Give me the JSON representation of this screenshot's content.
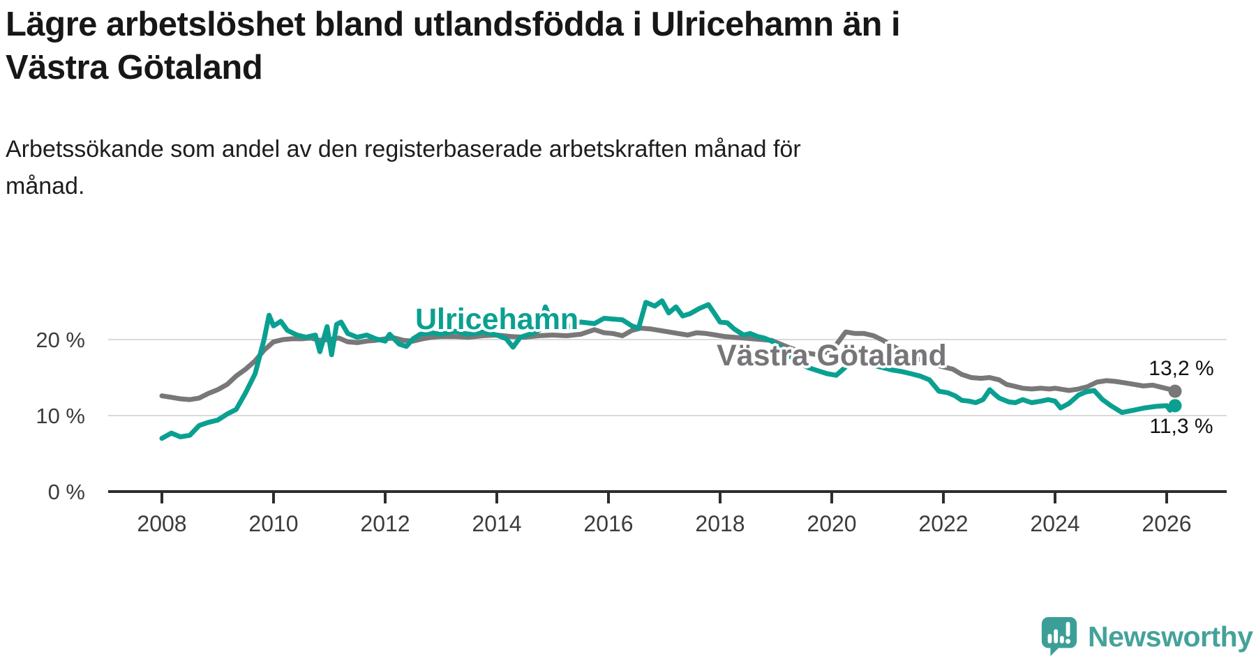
{
  "header": {
    "title_line1": "Lägre arbetslöshet bland utlandsfödda i Ulricehamn än i",
    "title_line2": "Västra Götaland",
    "subtitle_line1": "Arbetssökande som andel av den registerbaserade arbetskraften månad för",
    "subtitle_line2": "månad."
  },
  "footer": {
    "brand": "Newsworthy",
    "brand_color": "#45a29a",
    "icon": "newsworthy-speech-bubble-bar-chart-icon",
    "icon_color": "#3b9f97"
  },
  "chart_data": {
    "type": "line",
    "title": "Lägre arbetslöshet bland utlandsfödda i Ulricehamn än i Västra Götaland",
    "subtitle": "Arbetssökande som andel av den registerbaserade arbetskraften månad för månad.",
    "xlabel": "",
    "ylabel": "",
    "unit": "%",
    "grid": "horizontal",
    "legend_position": "inline-labels",
    "xlim": [
      2007.05,
      2027.1
    ],
    "ylim": [
      0,
      27
    ],
    "x_ticks": [
      {
        "value": 2008,
        "label": "2008"
      },
      {
        "value": 2010,
        "label": "2010"
      },
      {
        "value": 2012,
        "label": "2012"
      },
      {
        "value": 2014,
        "label": "2014"
      },
      {
        "value": 2016,
        "label": "2016"
      },
      {
        "value": 2018,
        "label": "2018"
      },
      {
        "value": 2020,
        "label": "2020"
      },
      {
        "value": 2022,
        "label": "2022"
      },
      {
        "value": 2024,
        "label": "2024"
      },
      {
        "value": 2026,
        "label": "2026"
      }
    ],
    "y_ticks": [
      {
        "value": 0,
        "label": "0 %"
      },
      {
        "value": 10,
        "label": "10 %"
      },
      {
        "value": 20,
        "label": "20 %"
      }
    ],
    "axis_color": "#2d2d2d",
    "tick_label_color": "#3c3c3c",
    "gridline_color": "#dadada",
    "series": [
      {
        "name": "Ulricehamn",
        "color": "#0aa091",
        "end_label": "11,3 %",
        "end_value": 11.3,
        "points": [
          [
            2008.0,
            7.0
          ],
          [
            2008.17,
            7.7
          ],
          [
            2008.33,
            7.2
          ],
          [
            2008.5,
            7.4
          ],
          [
            2008.67,
            8.7
          ],
          [
            2008.83,
            9.1
          ],
          [
            2009.0,
            9.4
          ],
          [
            2009.17,
            10.2
          ],
          [
            2009.33,
            10.8
          ],
          [
            2009.5,
            13.0
          ],
          [
            2009.67,
            15.5
          ],
          [
            2009.83,
            20.0
          ],
          [
            2009.92,
            23.2
          ],
          [
            2010.0,
            21.8
          ],
          [
            2010.13,
            22.4
          ],
          [
            2010.25,
            21.2
          ],
          [
            2010.42,
            20.6
          ],
          [
            2010.58,
            20.3
          ],
          [
            2010.75,
            20.6
          ],
          [
            2010.83,
            18.4
          ],
          [
            2010.96,
            21.7
          ],
          [
            2011.04,
            18.0
          ],
          [
            2011.13,
            22.0
          ],
          [
            2011.21,
            22.3
          ],
          [
            2011.33,
            20.8
          ],
          [
            2011.5,
            20.3
          ],
          [
            2011.67,
            20.6
          ],
          [
            2011.83,
            20.1
          ],
          [
            2012.0,
            19.8
          ],
          [
            2012.08,
            20.7
          ],
          [
            2012.25,
            19.4
          ],
          [
            2012.38,
            19.1
          ],
          [
            2012.5,
            20.1
          ],
          [
            2012.63,
            20.7
          ],
          [
            2012.83,
            20.9
          ],
          [
            2013.0,
            20.7
          ],
          [
            2013.25,
            21.1
          ],
          [
            2013.5,
            20.7
          ],
          [
            2013.75,
            21.0
          ],
          [
            2014.0,
            20.6
          ],
          [
            2014.17,
            20.1
          ],
          [
            2014.29,
            19.0
          ],
          [
            2014.42,
            20.3
          ],
          [
            2014.63,
            20.8
          ],
          [
            2014.75,
            21.2
          ],
          [
            2014.87,
            24.3
          ],
          [
            2015.0,
            21.9
          ],
          [
            2015.25,
            21.6
          ],
          [
            2015.5,
            22.3
          ],
          [
            2015.75,
            22.1
          ],
          [
            2015.92,
            22.8
          ],
          [
            2016.08,
            22.7
          ],
          [
            2016.25,
            22.6
          ],
          [
            2016.42,
            21.8
          ],
          [
            2016.54,
            21.5
          ],
          [
            2016.67,
            24.9
          ],
          [
            2016.83,
            24.4
          ],
          [
            2016.96,
            25.1
          ],
          [
            2017.08,
            23.5
          ],
          [
            2017.21,
            24.3
          ],
          [
            2017.33,
            23.1
          ],
          [
            2017.46,
            23.4
          ],
          [
            2017.63,
            24.1
          ],
          [
            2017.79,
            24.6
          ],
          [
            2017.92,
            23.2
          ],
          [
            2018.0,
            22.3
          ],
          [
            2018.13,
            22.2
          ],
          [
            2018.25,
            21.4
          ],
          [
            2018.42,
            20.6
          ],
          [
            2018.54,
            20.8
          ],
          [
            2018.67,
            20.4
          ],
          [
            2018.79,
            20.2
          ],
          [
            2018.92,
            19.8
          ],
          [
            2019.08,
            19.0
          ],
          [
            2019.25,
            17.8
          ],
          [
            2019.42,
            16.9
          ],
          [
            2019.58,
            16.3
          ],
          [
            2019.75,
            15.9
          ],
          [
            2019.92,
            15.5
          ],
          [
            2020.08,
            15.3
          ],
          [
            2020.25,
            16.4
          ],
          [
            2020.42,
            17.3
          ],
          [
            2020.58,
            17.0
          ],
          [
            2020.75,
            16.6
          ],
          [
            2020.92,
            16.3
          ],
          [
            2021.08,
            16.0
          ],
          [
            2021.25,
            15.8
          ],
          [
            2021.42,
            15.5
          ],
          [
            2021.58,
            15.2
          ],
          [
            2021.75,
            14.7
          ],
          [
            2021.92,
            13.2
          ],
          [
            2022.08,
            13.0
          ],
          [
            2022.21,
            12.6
          ],
          [
            2022.33,
            12.0
          ],
          [
            2022.46,
            11.9
          ],
          [
            2022.58,
            11.7
          ],
          [
            2022.71,
            12.1
          ],
          [
            2022.83,
            13.4
          ],
          [
            2022.92,
            12.8
          ],
          [
            2023.0,
            12.3
          ],
          [
            2023.17,
            11.8
          ],
          [
            2023.29,
            11.7
          ],
          [
            2023.42,
            12.1
          ],
          [
            2023.58,
            11.7
          ],
          [
            2023.75,
            11.9
          ],
          [
            2023.88,
            12.1
          ],
          [
            2024.0,
            11.9
          ],
          [
            2024.1,
            11.0
          ],
          [
            2024.25,
            11.6
          ],
          [
            2024.42,
            12.7
          ],
          [
            2024.55,
            13.1
          ],
          [
            2024.7,
            13.3
          ],
          [
            2024.85,
            12.1
          ],
          [
            2025.0,
            11.3
          ],
          [
            2025.2,
            10.4
          ],
          [
            2025.4,
            10.7
          ],
          [
            2025.6,
            11.0
          ],
          [
            2025.8,
            11.2
          ],
          [
            2026.0,
            11.3
          ],
          [
            2026.06,
            10.7
          ],
          [
            2026.15,
            11.3
          ]
        ]
      },
      {
        "name": "Västra Götaland",
        "color": "#787878",
        "label_color": "#767679",
        "end_label": "13,2 %",
        "end_value": 13.2,
        "points": [
          [
            2008.0,
            12.6
          ],
          [
            2008.17,
            12.4
          ],
          [
            2008.33,
            12.2
          ],
          [
            2008.5,
            12.1
          ],
          [
            2008.67,
            12.3
          ],
          [
            2008.83,
            12.9
          ],
          [
            2009.0,
            13.4
          ],
          [
            2009.17,
            14.1
          ],
          [
            2009.33,
            15.2
          ],
          [
            2009.5,
            16.1
          ],
          [
            2009.67,
            17.2
          ],
          [
            2009.83,
            18.6
          ],
          [
            2010.0,
            19.7
          ],
          [
            2010.17,
            20.0
          ],
          [
            2010.33,
            20.1
          ],
          [
            2010.5,
            20.1
          ],
          [
            2010.67,
            20.2
          ],
          [
            2010.83,
            19.9
          ],
          [
            2011.0,
            20.0
          ],
          [
            2011.17,
            20.2
          ],
          [
            2011.33,
            19.7
          ],
          [
            2011.5,
            19.6
          ],
          [
            2011.67,
            19.8
          ],
          [
            2011.83,
            19.9
          ],
          [
            2012.0,
            20.1
          ],
          [
            2012.17,
            20.2
          ],
          [
            2012.33,
            19.9
          ],
          [
            2012.5,
            19.8
          ],
          [
            2012.67,
            20.1
          ],
          [
            2012.83,
            20.3
          ],
          [
            2013.0,
            20.4
          ],
          [
            2013.25,
            20.4
          ],
          [
            2013.5,
            20.3
          ],
          [
            2013.75,
            20.5
          ],
          [
            2014.0,
            20.6
          ],
          [
            2014.25,
            20.4
          ],
          [
            2014.5,
            20.3
          ],
          [
            2014.75,
            20.5
          ],
          [
            2015.0,
            20.6
          ],
          [
            2015.25,
            20.5
          ],
          [
            2015.5,
            20.7
          ],
          [
            2015.75,
            21.3
          ],
          [
            2015.92,
            20.9
          ],
          [
            2016.08,
            20.8
          ],
          [
            2016.25,
            20.5
          ],
          [
            2016.42,
            21.2
          ],
          [
            2016.58,
            21.5
          ],
          [
            2016.75,
            21.4
          ],
          [
            2016.92,
            21.2
          ],
          [
            2017.08,
            21.0
          ],
          [
            2017.25,
            20.8
          ],
          [
            2017.42,
            20.6
          ],
          [
            2017.58,
            20.9
          ],
          [
            2017.75,
            20.8
          ],
          [
            2017.92,
            20.6
          ],
          [
            2018.08,
            20.4
          ],
          [
            2018.25,
            20.3
          ],
          [
            2018.42,
            20.2
          ],
          [
            2018.58,
            20.1
          ],
          [
            2018.75,
            20.0
          ],
          [
            2018.92,
            19.9
          ],
          [
            2019.08,
            19.4
          ],
          [
            2019.25,
            18.9
          ],
          [
            2019.42,
            18.5
          ],
          [
            2019.58,
            18.2
          ],
          [
            2019.75,
            18.0
          ],
          [
            2019.92,
            18.4
          ],
          [
            2020.08,
            19.3
          ],
          [
            2020.25,
            21.0
          ],
          [
            2020.42,
            20.8
          ],
          [
            2020.58,
            20.8
          ],
          [
            2020.75,
            20.5
          ],
          [
            2020.92,
            19.9
          ],
          [
            2021.08,
            19.2
          ],
          [
            2021.25,
            18.5
          ],
          [
            2021.5,
            17.6
          ],
          [
            2021.75,
            16.9
          ],
          [
            2022.0,
            16.4
          ],
          [
            2022.17,
            16.1
          ],
          [
            2022.33,
            15.4
          ],
          [
            2022.5,
            15.0
          ],
          [
            2022.67,
            14.9
          ],
          [
            2022.83,
            15.0
          ],
          [
            2023.0,
            14.7
          ],
          [
            2023.13,
            14.1
          ],
          [
            2023.25,
            13.9
          ],
          [
            2023.42,
            13.6
          ],
          [
            2023.58,
            13.5
          ],
          [
            2023.75,
            13.6
          ],
          [
            2023.9,
            13.5
          ],
          [
            2024.0,
            13.6
          ],
          [
            2024.25,
            13.3
          ],
          [
            2024.42,
            13.5
          ],
          [
            2024.58,
            13.8
          ],
          [
            2024.75,
            14.4
          ],
          [
            2024.92,
            14.6
          ],
          [
            2025.08,
            14.5
          ],
          [
            2025.25,
            14.3
          ],
          [
            2025.42,
            14.1
          ],
          [
            2025.58,
            13.9
          ],
          [
            2025.75,
            14.0
          ],
          [
            2025.92,
            13.7
          ],
          [
            2026.08,
            13.4
          ],
          [
            2026.15,
            13.2
          ]
        ]
      }
    ]
  }
}
